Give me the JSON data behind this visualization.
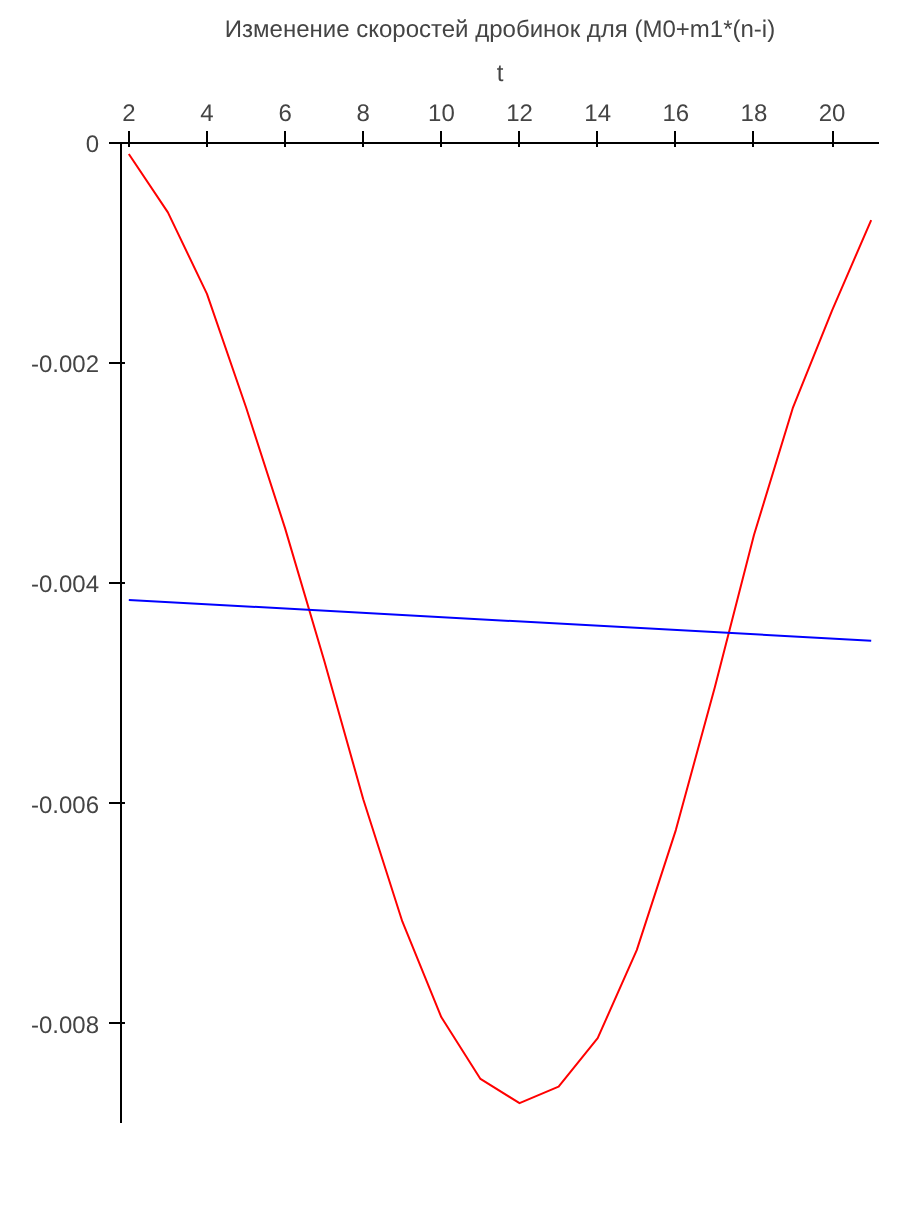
{
  "chart_data": {
    "type": "line",
    "title": "Изменение скоростей дробинок для (M0+m1*(n-i)",
    "xlabel": "t",
    "x": [
      2,
      3,
      4,
      5,
      6,
      7,
      8,
      9,
      10,
      11,
      12,
      13,
      14,
      15,
      16,
      17,
      18,
      19,
      20,
      21
    ],
    "series": [
      {
        "color": "#ff0000",
        "values": [
          -0.0001,
          -0.00063,
          -0.00137,
          -0.0024,
          -0.0035,
          -0.0047,
          -0.00596,
          -0.00707,
          -0.00794,
          -0.0085,
          -0.00872,
          -0.00857,
          -0.00813,
          -0.00733,
          -0.00624,
          -0.00494,
          -0.00356,
          -0.0024,
          -0.00152,
          -0.0007
        ]
      },
      {
        "color": "#0000ff",
        "x": [
          2,
          21
        ],
        "values": [
          -0.00415,
          -0.00452
        ]
      }
    ],
    "xlim": [
      1.8,
      21.2
    ],
    "ylim": [
      -0.0089,
      0
    ],
    "xticks": [
      2,
      4,
      6,
      8,
      10,
      12,
      14,
      16,
      18,
      20
    ],
    "yticks": [
      0,
      -0.002,
      -0.004,
      -0.006,
      -0.008
    ],
    "grid": false,
    "marker": "none",
    "line_style": "solid"
  }
}
